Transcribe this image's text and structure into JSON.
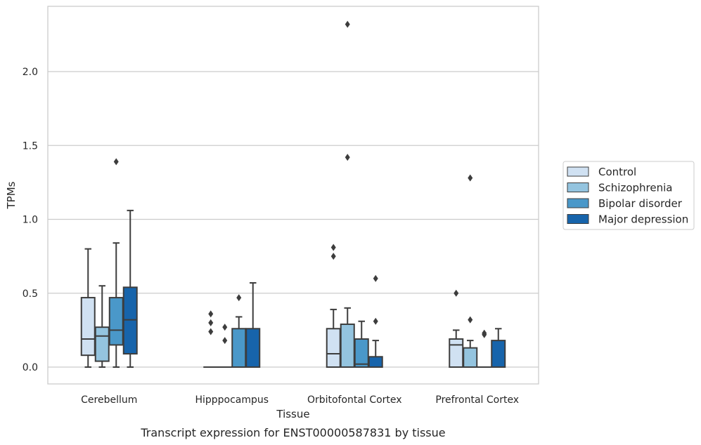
{
  "chart_data": {
    "type": "box",
    "title": "",
    "caption": "Transcript expression for ENST00000587831 by tissue",
    "xlabel": "Tissue",
    "ylabel": "TPMs",
    "ylim": [
      -0.11,
      2.45
    ],
    "yticks": [
      0.0,
      0.5,
      1.0,
      1.5,
      2.0
    ],
    "ytick_labels": [
      "0.0",
      "0.5",
      "1.0",
      "1.5",
      "2.0"
    ],
    "grid": "horizontal",
    "legend_position": "right",
    "categories": [
      "Cerebellum",
      "Hipppocampus",
      "Orbitofontal Cortex",
      "Prefrontal Cortex"
    ],
    "series": [
      {
        "name": "Control",
        "color": "#d0e1f2",
        "boxes": [
          {
            "whislo": 0.0,
            "q1": 0.08,
            "med": 0.19,
            "q3": 0.47,
            "whishi": 0.8,
            "fliers": []
          },
          {
            "whislo": 0.0,
            "q1": 0.0,
            "med": 0.0,
            "q3": 0.0,
            "whishi": 0.0,
            "fliers": [
              0.24,
              0.3,
              0.36
            ]
          },
          {
            "whislo": 0.0,
            "q1": 0.0,
            "med": 0.09,
            "q3": 0.26,
            "whishi": 0.39,
            "fliers": [
              0.75,
              0.81
            ]
          },
          {
            "whislo": 0.0,
            "q1": 0.0,
            "med": 0.15,
            "q3": 0.19,
            "whishi": 0.25,
            "fliers": [
              0.5
            ]
          }
        ]
      },
      {
        "name": "Schizophrenia",
        "color": "#94c4df",
        "boxes": [
          {
            "whislo": 0.0,
            "q1": 0.04,
            "med": 0.21,
            "q3": 0.27,
            "whishi": 0.55,
            "fliers": []
          },
          {
            "whislo": 0.0,
            "q1": 0.0,
            "med": 0.0,
            "q3": 0.0,
            "whishi": 0.0,
            "fliers": [
              0.18,
              0.27
            ]
          },
          {
            "whislo": 0.0,
            "q1": 0.0,
            "med": 0.0,
            "q3": 0.29,
            "whishi": 0.4,
            "fliers": [
              1.42,
              2.32
            ]
          },
          {
            "whislo": 0.0,
            "q1": 0.0,
            "med": 0.0,
            "q3": 0.13,
            "whishi": 0.18,
            "fliers": [
              0.32,
              1.28
            ]
          }
        ]
      },
      {
        "name": "Bipolar disorder",
        "color": "#4a98c9",
        "boxes": [
          {
            "whislo": 0.0,
            "q1": 0.15,
            "med": 0.25,
            "q3": 0.47,
            "whishi": 0.84,
            "fliers": [
              1.39
            ]
          },
          {
            "whislo": 0.0,
            "q1": 0.0,
            "med": 0.0,
            "q3": 0.26,
            "whishi": 0.34,
            "fliers": [
              0.47
            ]
          },
          {
            "whislo": 0.0,
            "q1": 0.0,
            "med": 0.02,
            "q3": 0.19,
            "whishi": 0.31,
            "fliers": []
          },
          {
            "whislo": 0.0,
            "q1": 0.0,
            "med": 0.0,
            "q3": 0.0,
            "whishi": 0.0,
            "fliers": [
              0.22,
              0.23
            ]
          }
        ]
      },
      {
        "name": "Major depression",
        "color": "#1764ab",
        "boxes": [
          {
            "whislo": 0.0,
            "q1": 0.09,
            "med": 0.32,
            "q3": 0.54,
            "whishi": 1.06,
            "fliers": []
          },
          {
            "whislo": 0.0,
            "q1": 0.0,
            "med": 0.0,
            "q3": 0.26,
            "whishi": 0.57,
            "fliers": []
          },
          {
            "whislo": 0.0,
            "q1": 0.0,
            "med": 0.0,
            "q3": 0.07,
            "whishi": 0.18,
            "fliers": [
              0.31,
              0.6
            ]
          },
          {
            "whislo": 0.0,
            "q1": 0.0,
            "med": 0.0,
            "q3": 0.18,
            "whishi": 0.26,
            "fliers": []
          }
        ]
      }
    ]
  }
}
